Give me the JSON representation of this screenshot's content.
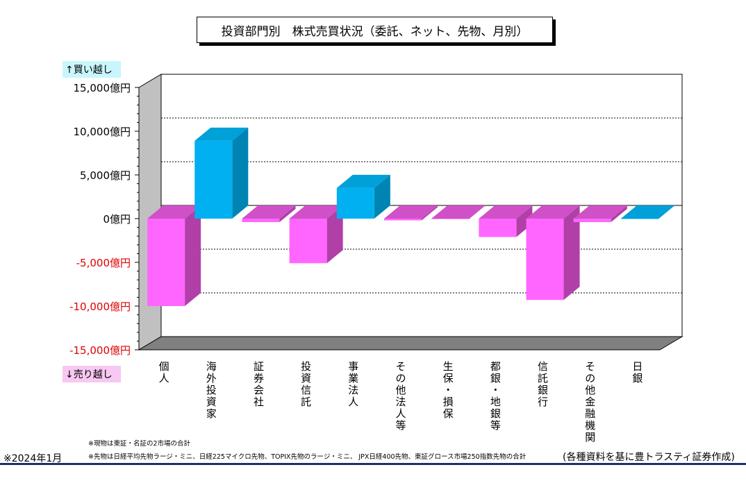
{
  "title": "投資部門別　株式売買状況（委託、ネット、先物、月別）",
  "labels": {
    "buy": "↑買い越し",
    "sell": "↓売り越し"
  },
  "notes": [
    "※現物は東証・名証の2市場の合計",
    "※先物は日経平均先物ラージ・ミニ、日経225マイクロ先物、TOPIX先物のラージ・ミニ、 JPX日経400先物、東証グロース市場250指数先物の合計"
  ],
  "date_note": "※2024年1月",
  "source": "(各種資料を基に豊トラスティ証券作成)",
  "colors": {
    "positive_front": "#00b0f0",
    "positive_side": "#0084b4",
    "positive_top": "#00a0d8",
    "negative_front": "#ff66ff",
    "negative_side": "#b040a8",
    "negative_top": "#d050c8",
    "wall": "#ffffff",
    "floor": "#808080",
    "positive_tick": "#000000",
    "negative_tick": "#e00000"
  },
  "chart_data": {
    "type": "bar",
    "categories": [
      "個人",
      "海外投資家",
      "証券会社",
      "投資信託",
      "事業法人",
      "その他法人等",
      "生保・損保",
      "都銀・地銀等",
      "信託銀行",
      "その他金融機関",
      "日銀"
    ],
    "values": [
      -10000,
      8900,
      -400,
      -5100,
      3500,
      -200,
      -50,
      -2100,
      -9300,
      -400,
      0
    ],
    "ylim": [
      -15000,
      15000
    ],
    "yticks": [
      15000,
      10000,
      5000,
      0,
      -5000,
      -10000,
      -15000
    ],
    "ytick_labels": [
      "15,000億円",
      "10,000億円",
      "5,000億円",
      "0億円",
      "-5,000億円",
      "-10,000億円",
      "-15,000億円"
    ],
    "grid": true
  }
}
